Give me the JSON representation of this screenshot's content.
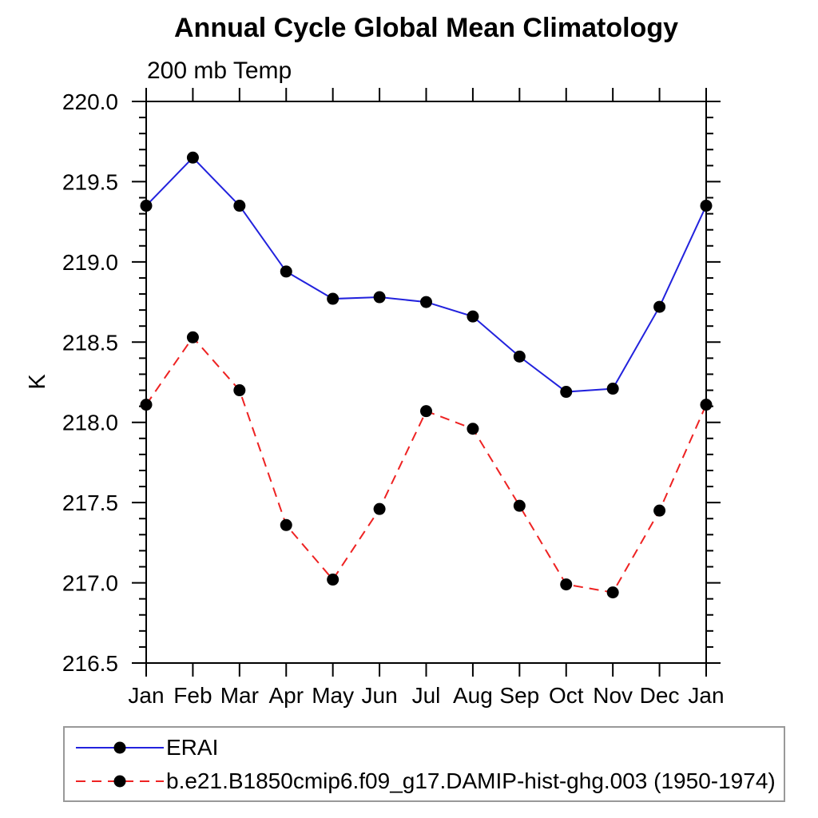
{
  "chart_data": {
    "type": "line",
    "title": "Annual Cycle Global Mean Climatology",
    "subtitle": "200 mb Temp",
    "ylabel": "K",
    "categories": [
      "Jan",
      "Feb",
      "Mar",
      "Apr",
      "May",
      "Jun",
      "Jul",
      "Aug",
      "Sep",
      "Oct",
      "Nov",
      "Dec",
      "Jan"
    ],
    "ylim": [
      216.5,
      220.0
    ],
    "ytick_step": 0.5,
    "yminor_step": 0.1,
    "ytick_labels": [
      "220.0",
      "219.5",
      "219.0",
      "218.5",
      "218.0",
      "217.5",
      "217.0",
      "216.5"
    ],
    "grid": false,
    "legend_position": "bottom-left",
    "axis_color": "#000000",
    "series": [
      {
        "id": "erai",
        "name": "ERAI",
        "color": "#2222dd",
        "line_style": "solid",
        "marker": "circle",
        "marker_color": "#000000",
        "values": [
          219.35,
          219.65,
          219.35,
          218.94,
          218.77,
          218.78,
          218.75,
          218.66,
          218.41,
          218.19,
          218.21,
          218.72,
          219.35
        ]
      },
      {
        "id": "damip-hist-ghg-003",
        "name": "b.e21.B1850cmip6.f09_g17.DAMIP-hist-ghg.003 (1950-1974)",
        "color": "#ee2222",
        "line_style": "dashed",
        "dash": "12 8",
        "marker": "circle",
        "marker_color": "#000000",
        "values": [
          218.11,
          218.53,
          218.2,
          217.36,
          217.02,
          217.46,
          218.07,
          217.96,
          217.48,
          216.99,
          216.94,
          217.45,
          218.11
        ]
      }
    ]
  }
}
